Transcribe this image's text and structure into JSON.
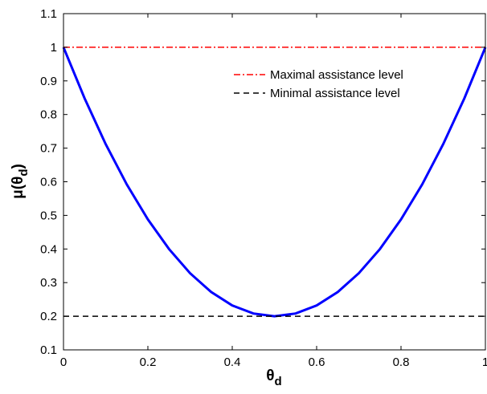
{
  "chart_data": {
    "type": "line",
    "xlabel": {
      "main": "θ",
      "sub": "d"
    },
    "ylabel": {
      "prefix": "μ(θ",
      "sub": "d",
      "suffix": ")"
    },
    "xlim": [
      0,
      1
    ],
    "ylim": [
      0.1,
      1.1
    ],
    "xticks": [
      0,
      0.2,
      0.4,
      0.6,
      0.8,
      1
    ],
    "xtick_labels": [
      "0",
      "0.2",
      "0.4",
      "0.6",
      "0.8",
      "1"
    ],
    "yticks": [
      0.1,
      0.2,
      0.3,
      0.4,
      0.5,
      0.6,
      0.7,
      0.8,
      0.9,
      1,
      1.1
    ],
    "ytick_labels": [
      "0.1",
      "0.2",
      "0.3",
      "0.4",
      "0.5",
      "0.6",
      "0.7",
      "0.8",
      "0.9",
      "1",
      "1.1"
    ],
    "grid": false,
    "legend_position": "top-right",
    "series": [
      {
        "color": "#0000ff",
        "style": "solid",
        "x": [
          0,
          0.05,
          0.1,
          0.15,
          0.2,
          0.25,
          0.3,
          0.35,
          0.4,
          0.45,
          0.5,
          0.55,
          0.6,
          0.65,
          0.7,
          0.75,
          0.8,
          0.85,
          0.9,
          0.95,
          1
        ],
        "y": [
          1,
          0.848,
          0.712,
          0.592,
          0.488,
          0.4,
          0.328,
          0.272,
          0.232,
          0.208,
          0.2,
          0.208,
          0.232,
          0.272,
          0.328,
          0.4,
          0.488,
          0.592,
          0.712,
          0.848,
          1
        ]
      },
      {
        "name": "Maximal assistance level",
        "color": "#ff0000",
        "style": "dashdot",
        "x": [
          0,
          1
        ],
        "y": [
          1,
          1
        ]
      },
      {
        "name": "Minimal assistance level",
        "color": "#000000",
        "style": "dashed",
        "x": [
          0,
          1
        ],
        "y": [
          0.2,
          0.2
        ]
      }
    ]
  }
}
